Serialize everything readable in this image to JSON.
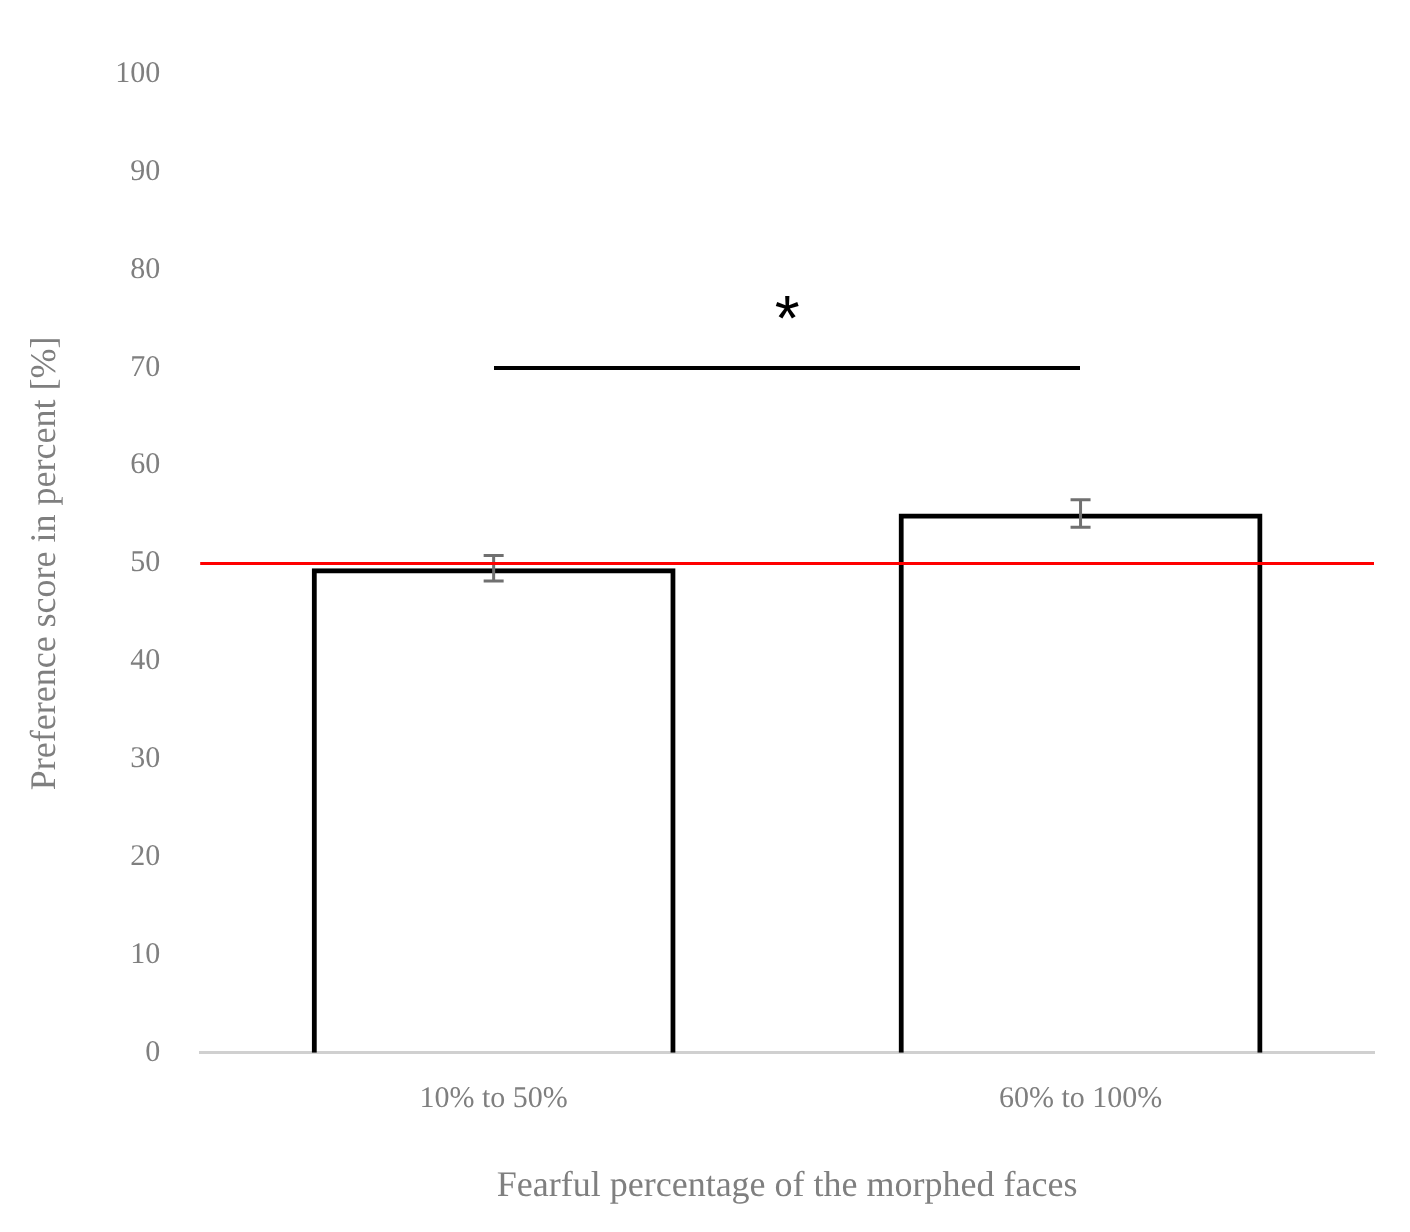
{
  "chart_data": {
    "type": "bar",
    "xlabel": "Fearful percentage of the morphed faces",
    "ylabel": "Preference score in percent [%]",
    "categories": [
      "10% to 50%",
      "60% to 100%"
    ],
    "values": [
      49.5,
      55.1
    ],
    "errors": [
      1.3,
      1.4
    ],
    "colors": [
      "#000000",
      "#000000"
    ],
    "ylim": [
      0,
      100
    ],
    "yticks": [
      0,
      10,
      20,
      30,
      40,
      50,
      60,
      70,
      80,
      90,
      100
    ],
    "grid": false,
    "ref_lines": [
      {
        "axis": "y",
        "value": 50,
        "color": "#ff0000"
      }
    ],
    "annotations": [
      "*"
    ]
  }
}
